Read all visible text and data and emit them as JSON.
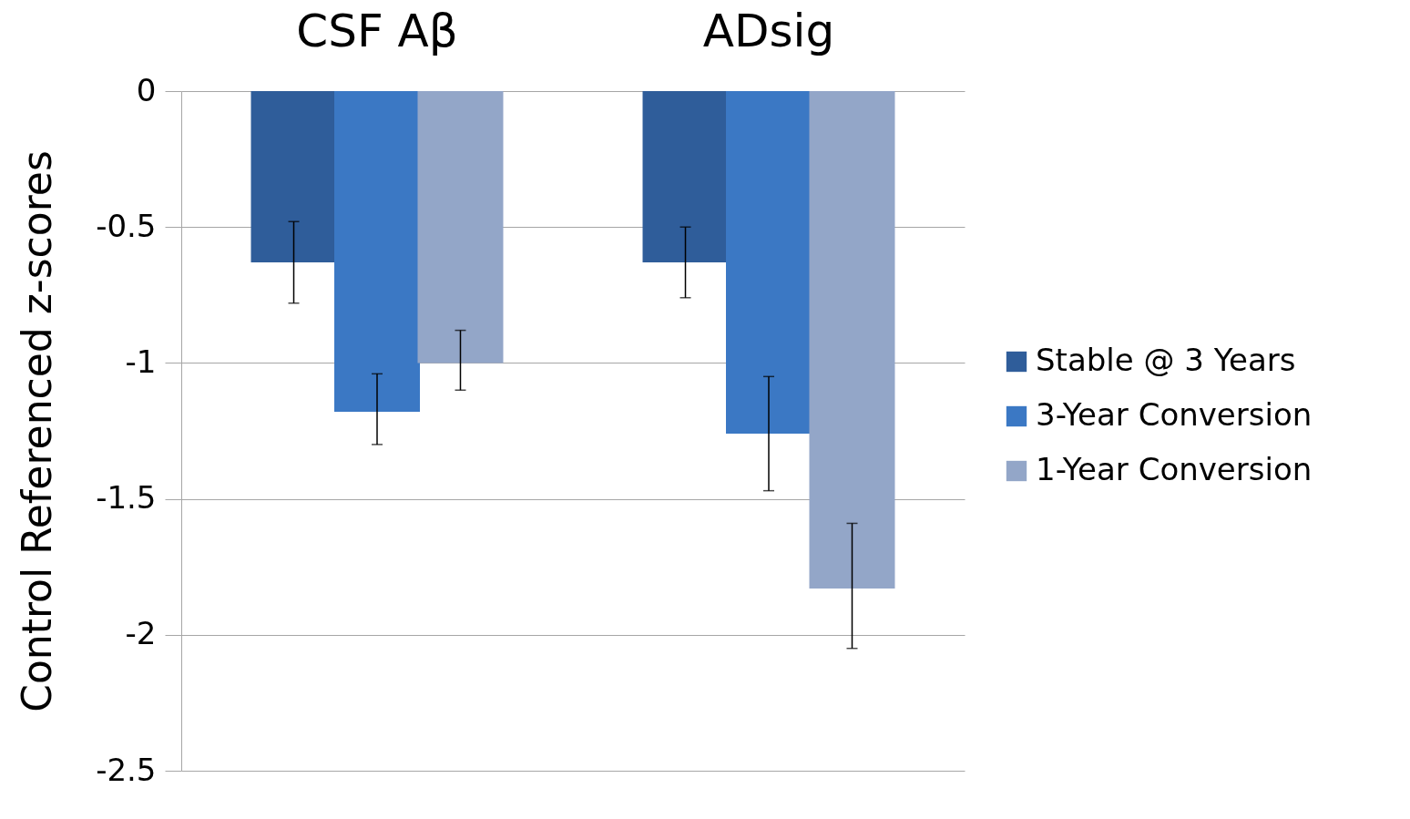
{
  "chart_data": {
    "type": "bar",
    "ylabel": "Control Referenced z-scores",
    "categories": [
      "CSF Aβ",
      "ADsig"
    ],
    "series": [
      {
        "name": "Stable @ 3 Years",
        "color": "#2f5d9a",
        "values": [
          -0.63,
          -0.63
        ],
        "errors": [
          [
            -0.78,
            -0.48
          ],
          [
            -0.76,
            -0.5
          ]
        ]
      },
      {
        "name": "3-Year Conversion",
        "color": "#3b78c4",
        "values": [
          -1.18,
          -1.26
        ],
        "errors": [
          [
            -1.3,
            -1.04
          ],
          [
            -1.47,
            -1.05
          ]
        ]
      },
      {
        "name": "1-Year Conversion",
        "color": "#93a6c8",
        "values": [
          -1.0,
          -1.83
        ],
        "errors": [
          [
            -1.1,
            -0.88
          ],
          [
            -2.05,
            -1.59
          ]
        ]
      }
    ],
    "ylim": [
      -2.5,
      0
    ],
    "yticks": [
      0,
      -0.5,
      -1,
      -1.5,
      -2,
      -2.5
    ],
    "grid": "y",
    "legend": "right"
  }
}
